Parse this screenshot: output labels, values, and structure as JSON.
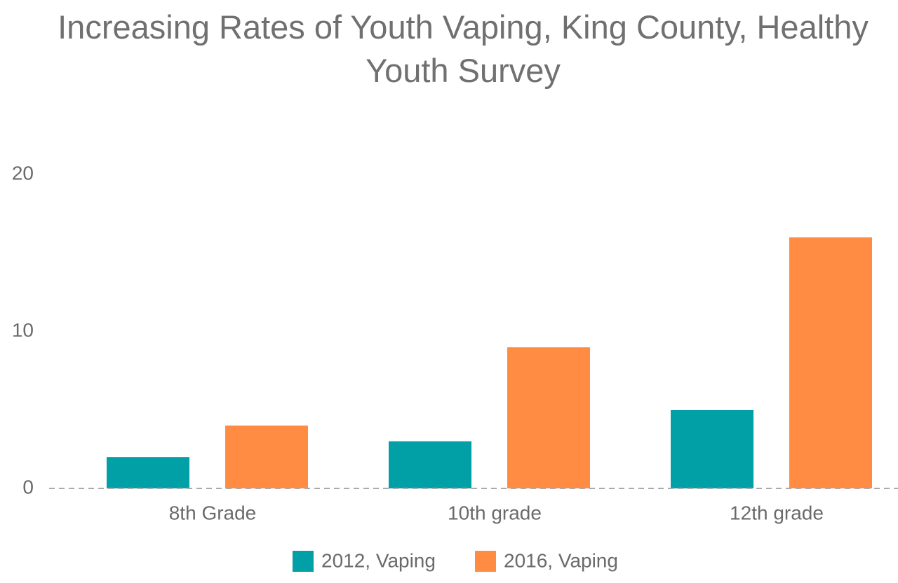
{
  "chart_data": {
    "type": "bar",
    "title": "Increasing Rates of Youth Vaping, King County, Healthy Youth Survey",
    "categories": [
      "8th Grade",
      "10th grade",
      "12th grade"
    ],
    "series": [
      {
        "name": "2012, Vaping",
        "color": "#00a0a6",
        "values": [
          2,
          3,
          5
        ]
      },
      {
        "name": "2016, Vaping",
        "color": "#ff8c42",
        "values": [
          4,
          9,
          16
        ]
      }
    ],
    "ylim": [
      0,
      20
    ],
    "yticks": [
      0,
      10,
      20
    ],
    "grid": false,
    "legend": "bottom"
  }
}
